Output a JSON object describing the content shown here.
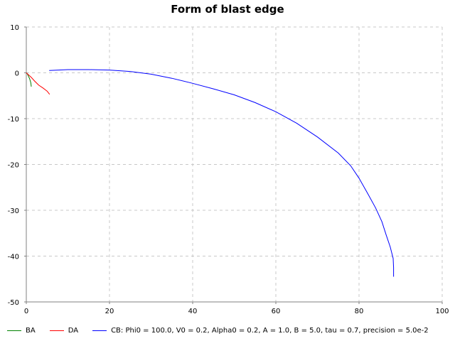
{
  "chart_data": {
    "type": "line",
    "title": "Form of blast edge",
    "xlabel": "",
    "ylabel": "",
    "xlim": [
      0,
      100
    ],
    "ylim": [
      -50,
      10
    ],
    "x_ticks": [
      0,
      20,
      40,
      60,
      80,
      100
    ],
    "y_ticks": [
      10,
      0,
      -10,
      -20,
      -30,
      -40,
      -50
    ],
    "grid": true,
    "legend_position": "bottom-left",
    "series": [
      {
        "name": "BA",
        "color": "#008000",
        "points": [
          [
            0.1,
            0
          ],
          [
            0.4,
            -0.5
          ],
          [
            0.8,
            -1.3
          ],
          [
            1.1,
            -2.2
          ],
          [
            1.2,
            -3.0
          ]
        ]
      },
      {
        "name": "DA",
        "color": "#ff0000",
        "points": [
          [
            0,
            0
          ],
          [
            0.5,
            -0.4
          ],
          [
            1.2,
            -1.0
          ],
          [
            2.0,
            -1.8
          ],
          [
            3.0,
            -2.7
          ],
          [
            4.0,
            -3.3
          ],
          [
            5.0,
            -4.0
          ],
          [
            5.6,
            -4.7
          ]
        ]
      },
      {
        "name": "CB: Phi0 = 100.0, V0 = 0.2, Alpha0 = 0.2, A = 1.0, B = 5.0, tau = 0.7, precision = 5.0e-2",
        "color": "#0000ff",
        "points": [
          [
            5.5,
            0.5
          ],
          [
            10,
            0.7
          ],
          [
            15,
            0.7
          ],
          [
            20,
            0.6
          ],
          [
            25,
            0.3
          ],
          [
            30,
            -0.3
          ],
          [
            35,
            -1.2
          ],
          [
            40,
            -2.3
          ],
          [
            45,
            -3.5
          ],
          [
            50,
            -4.8
          ],
          [
            55,
            -6.5
          ],
          [
            60,
            -8.5
          ],
          [
            65,
            -11.0
          ],
          [
            70,
            -14.0
          ],
          [
            75,
            -17.5
          ],
          [
            78,
            -20.3
          ],
          [
            80,
            -23.0
          ],
          [
            82,
            -26.2
          ],
          [
            84,
            -29.5
          ],
          [
            85.5,
            -32.5
          ],
          [
            86.5,
            -35.3
          ],
          [
            87.5,
            -38.0
          ],
          [
            88.2,
            -40.5
          ],
          [
            88.3,
            -42.5
          ],
          [
            88.3,
            -44.5
          ]
        ]
      }
    ]
  }
}
